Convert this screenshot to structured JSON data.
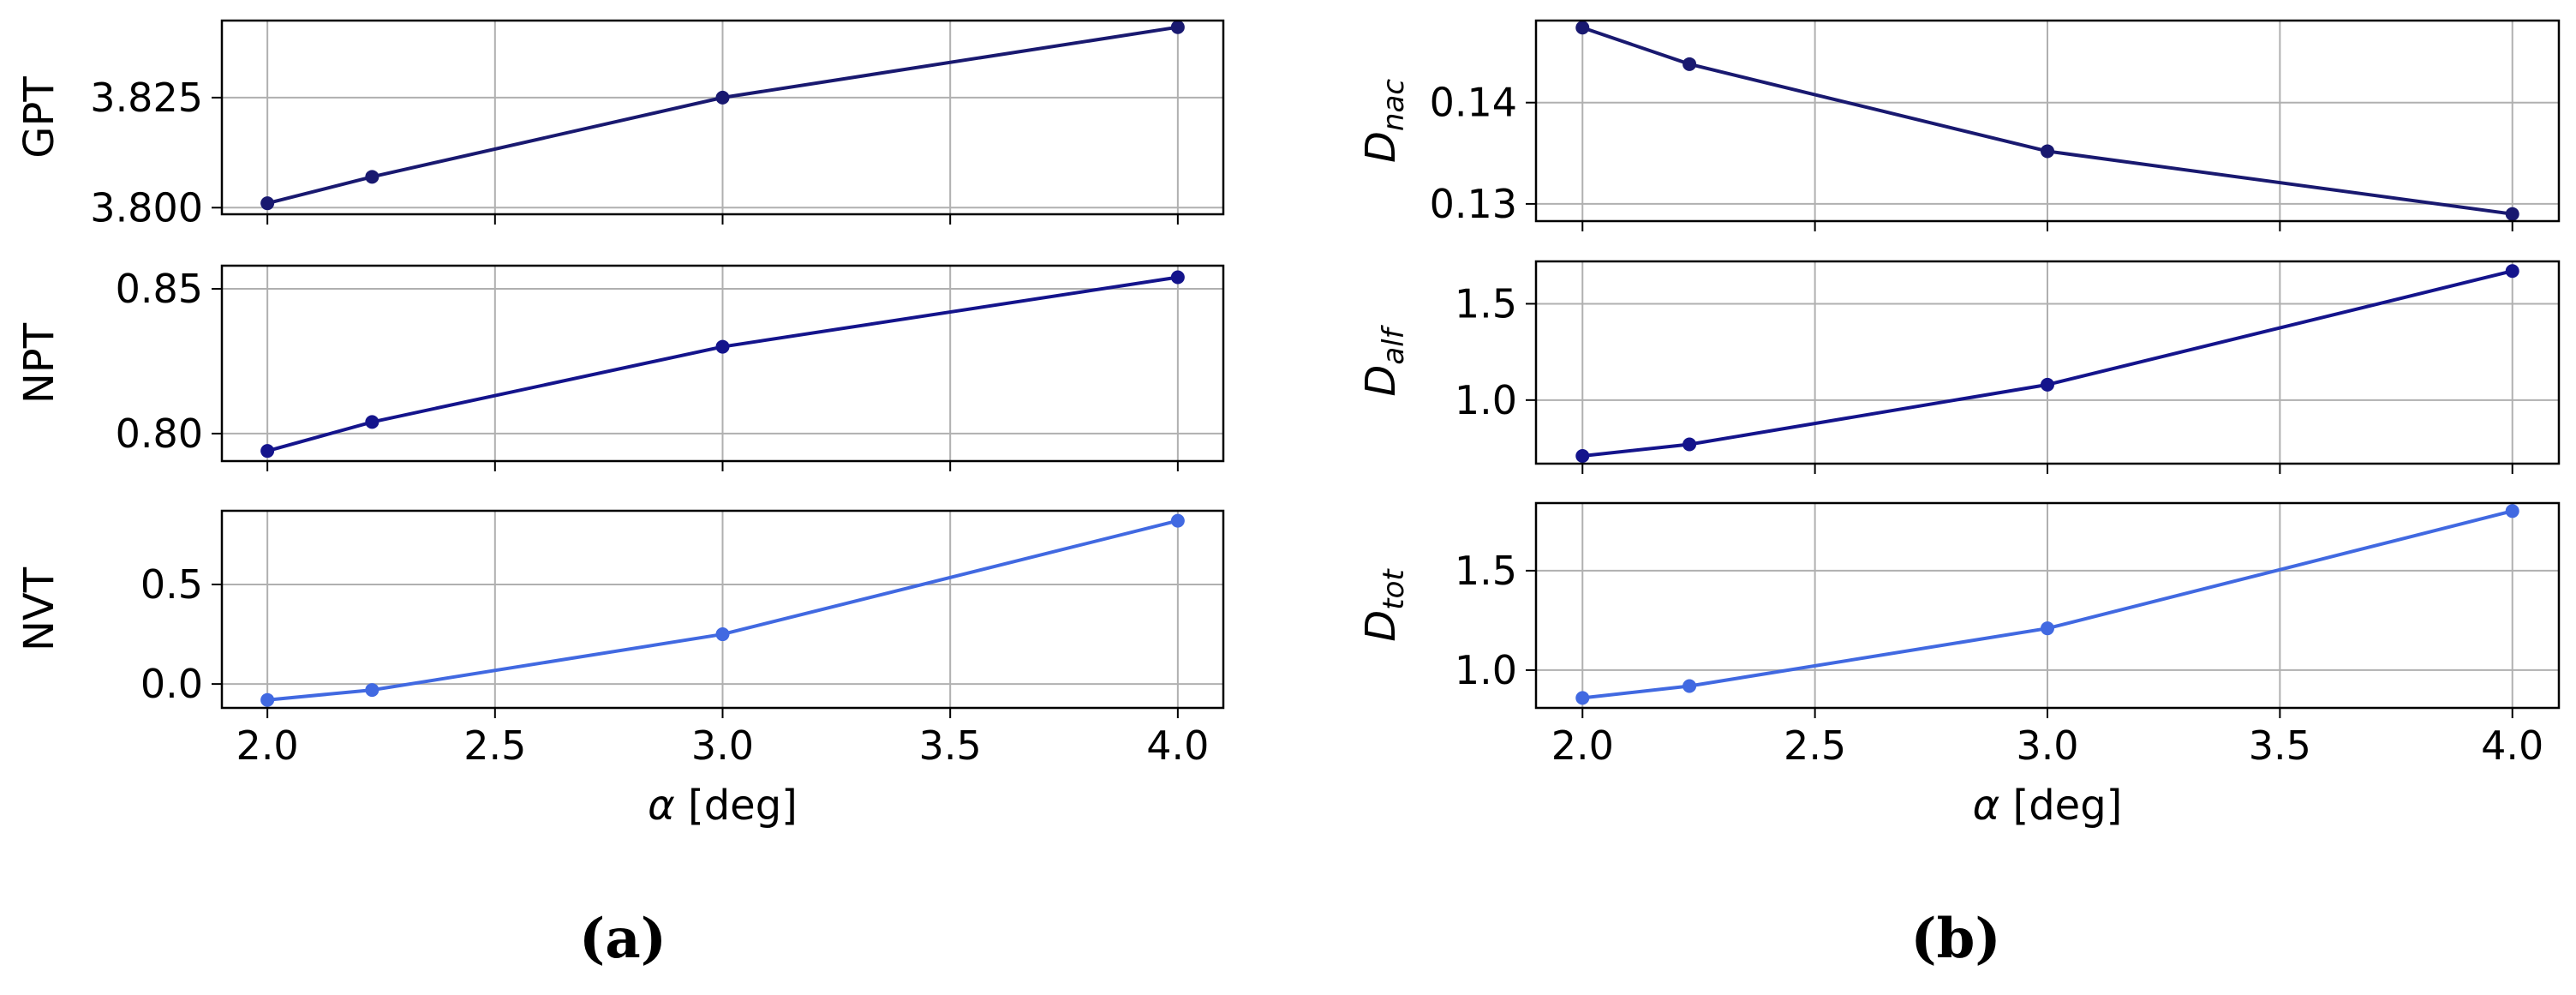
{
  "captions": {
    "a": "(a)",
    "b": "(b)"
  },
  "chart_data": [
    {
      "type": "line",
      "panel": "a",
      "ylabel": "GPT",
      "xlabel": "",
      "series": [
        {
          "x": [
            2.0,
            2.23,
            3.0,
            4.0
          ],
          "values": [
            3.801,
            3.807,
            3.825,
            3.841
          ]
        }
      ],
      "xlim": [
        1.9,
        4.1
      ],
      "ylim": [
        3.7985,
        3.8425
      ],
      "yticks": [
        3.8,
        3.825
      ],
      "ytick_labels": [
        "3.800",
        "3.825"
      ],
      "xticks": [
        2.0,
        2.5,
        3.0,
        3.5,
        4.0
      ],
      "xtick_labels": [],
      "color": "#191970",
      "grid": true
    },
    {
      "type": "line",
      "panel": "a",
      "ylabel": "NPT",
      "xlabel": "",
      "series": [
        {
          "x": [
            2.0,
            2.23,
            3.0,
            4.0
          ],
          "values": [
            0.794,
            0.804,
            0.83,
            0.854
          ]
        }
      ],
      "xlim": [
        1.9,
        4.1
      ],
      "ylim": [
        0.7905,
        0.858
      ],
      "yticks": [
        0.8,
        0.85
      ],
      "ytick_labels": [
        "0.80",
        "0.85"
      ],
      "xticks": [
        2.0,
        2.5,
        3.0,
        3.5,
        4.0
      ],
      "xtick_labels": [],
      "color": "#14148c",
      "grid": true
    },
    {
      "type": "line",
      "panel": "a",
      "ylabel": "NVT",
      "xlabel": "α [deg]",
      "series": [
        {
          "x": [
            2.0,
            2.23,
            3.0,
            4.0
          ],
          "values": [
            -0.08,
            -0.03,
            0.25,
            0.82
          ]
        }
      ],
      "xlim": [
        1.9,
        4.1
      ],
      "ylim": [
        -0.12,
        0.87
      ],
      "yticks": [
        0.0,
        0.5
      ],
      "ytick_labels": [
        "0.0",
        "0.5"
      ],
      "xticks": [
        2.0,
        2.5,
        3.0,
        3.5,
        4.0
      ],
      "xtick_labels": [
        "2.0",
        "2.5",
        "3.0",
        "3.5",
        "4.0"
      ],
      "color": "#4169e1",
      "grid": true
    },
    {
      "type": "line",
      "panel": "b",
      "ylabel": "D",
      "ylabel_sub": "nac",
      "xlabel": "",
      "series": [
        {
          "x": [
            2.0,
            2.23,
            3.0,
            4.0
          ],
          "values": [
            0.1474,
            0.1438,
            0.1352,
            0.129
          ]
        }
      ],
      "xlim": [
        1.9,
        4.1
      ],
      "ylim": [
        0.1283,
        0.1481
      ],
      "yticks": [
        0.13,
        0.14
      ],
      "ytick_labels": [
        "0.13",
        "0.14"
      ],
      "xticks": [
        2.0,
        2.5,
        3.0,
        3.5,
        4.0
      ],
      "xtick_labels": [],
      "color": "#191970",
      "grid": true
    },
    {
      "type": "line",
      "panel": "b",
      "ylabel": "D",
      "ylabel_sub": "alf",
      "xlabel": "",
      "series": [
        {
          "x": [
            2.0,
            2.23,
            3.0,
            4.0
          ],
          "values": [
            0.71,
            0.77,
            1.08,
            1.67
          ]
        }
      ],
      "xlim": [
        1.9,
        4.1
      ],
      "ylim": [
        0.67,
        1.72
      ],
      "yticks": [
        1.0,
        1.5
      ],
      "ytick_labels": [
        "1.0",
        "1.5"
      ],
      "xticks": [
        2.0,
        2.5,
        3.0,
        3.5,
        4.0
      ],
      "xtick_labels": [],
      "color": "#14148c",
      "grid": true
    },
    {
      "type": "line",
      "panel": "b",
      "ylabel": "D",
      "ylabel_sub": "tot",
      "xlabel": "α [deg]",
      "series": [
        {
          "x": [
            2.0,
            2.23,
            3.0,
            4.0
          ],
          "values": [
            0.86,
            0.92,
            1.21,
            1.8
          ]
        }
      ],
      "xlim": [
        1.9,
        4.1
      ],
      "ylim": [
        0.81,
        1.84
      ],
      "yticks": [
        1.0,
        1.5
      ],
      "ytick_labels": [
        "1.0",
        "1.5"
      ],
      "xticks": [
        2.0,
        2.5,
        3.0,
        3.5,
        4.0
      ],
      "xtick_labels": [
        "2.0",
        "2.5",
        "3.0",
        "3.5",
        "4.0"
      ],
      "color": "#4169e1",
      "grid": true
    }
  ]
}
